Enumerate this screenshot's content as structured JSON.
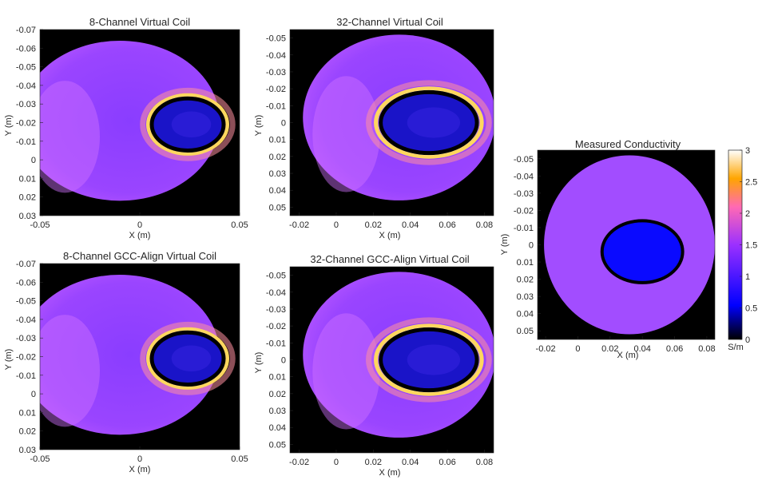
{
  "chart_data": [
    {
      "type": "heatmap",
      "title": "8-Channel Virtual Coil",
      "xlabel": "X (m)",
      "ylabel": "Y (m)",
      "xlim": [
        -0.05,
        0.05
      ],
      "ylim": [
        -0.07,
        0.03
      ],
      "y_reversed": true,
      "xticks": [
        -0.05,
        0,
        0.05
      ],
      "xtick_labels": [
        "-0.05",
        "0",
        "0.05"
      ],
      "yticks": [
        -0.07,
        -0.06,
        -0.05,
        -0.04,
        -0.03,
        -0.02,
        -0.01,
        0,
        0.01,
        0.02,
        0.03
      ],
      "ytick_labels": [
        "-0.07",
        "-0.06",
        "-0.05",
        "-0.04",
        "-0.03",
        "-0.02",
        "-0.01",
        "0",
        "0.01",
        "0.02",
        "0.03"
      ],
      "object_center": [
        -0.01,
        -0.021
      ],
      "object_radii": [
        0.05,
        0.043
      ],
      "inclusion_center": [
        0.024,
        -0.019
      ],
      "inclusion_radii": [
        0.018,
        0.014
      ],
      "background_level_s_per_m": 1.55,
      "rim_peak_s_per_m": 3.0
    },
    {
      "type": "heatmap",
      "title": "32-Channel Virtual Coil",
      "xlabel": "X (m)",
      "ylabel": "Y (m)",
      "xlim": [
        -0.025,
        0.085
      ],
      "ylim": [
        -0.055,
        0.055
      ],
      "y_reversed": true,
      "xticks": [
        -0.02,
        0,
        0.02,
        0.04,
        0.06,
        0.08
      ],
      "xtick_labels": [
        "-0.02",
        "0",
        "0.02",
        "0.04",
        "0.06",
        "0.08"
      ],
      "yticks": [
        -0.05,
        -0.04,
        -0.03,
        -0.02,
        -0.01,
        0,
        0.01,
        0.02,
        0.03,
        0.04,
        0.05
      ],
      "ytick_labels": [
        "-0.05",
        "-0.04",
        "-0.03",
        "-0.02",
        "-0.01",
        "0",
        "0.01",
        "0.02",
        "0.03",
        "0.04",
        "0.05"
      ],
      "object_center": [
        0.034,
        -0.003
      ],
      "object_radii": [
        0.052,
        0.049
      ],
      "inclusion_center": [
        0.05,
        0.0
      ],
      "inclusion_radii": [
        0.026,
        0.018
      ],
      "background_level_s_per_m": 1.55,
      "rim_peak_s_per_m": 3.0
    },
    {
      "type": "heatmap",
      "title": "8-Channel GCC-Align Virtual Coil",
      "xlabel": "X (m)",
      "ylabel": "Y (m)",
      "xlim": [
        -0.05,
        0.05
      ],
      "ylim": [
        -0.07,
        0.03
      ],
      "y_reversed": true,
      "xticks": [
        -0.05,
        0,
        0.05
      ],
      "xtick_labels": [
        "-0.05",
        "0",
        "0.05"
      ],
      "yticks": [
        -0.07,
        -0.06,
        -0.05,
        -0.04,
        -0.03,
        -0.02,
        -0.01,
        0,
        0.01,
        0.02,
        0.03
      ],
      "ytick_labels": [
        "-0.07",
        "-0.06",
        "-0.05",
        "-0.04",
        "-0.03",
        "-0.02",
        "-0.01",
        "0",
        "0.01",
        "0.02",
        "0.03"
      ],
      "object_center": [
        -0.01,
        -0.021
      ],
      "object_radii": [
        0.05,
        0.043
      ],
      "inclusion_center": [
        0.024,
        -0.019
      ],
      "inclusion_radii": [
        0.018,
        0.014
      ],
      "background_level_s_per_m": 1.55,
      "rim_peak_s_per_m": 3.0
    },
    {
      "type": "heatmap",
      "title": "32-Channel GCC-Align Virtual Coil",
      "xlabel": "X (m)",
      "ylabel": "Y (m)",
      "xlim": [
        -0.025,
        0.085
      ],
      "ylim": [
        -0.055,
        0.055
      ],
      "y_reversed": true,
      "xticks": [
        -0.02,
        0,
        0.02,
        0.04,
        0.06,
        0.08
      ],
      "xtick_labels": [
        "-0.02",
        "0",
        "0.02",
        "0.04",
        "0.06",
        "0.08"
      ],
      "yticks": [
        -0.05,
        -0.04,
        -0.03,
        -0.02,
        -0.01,
        0,
        0.01,
        0.02,
        0.03,
        0.04,
        0.05
      ],
      "ytick_labels": [
        "-0.05",
        "-0.04",
        "-0.03",
        "-0.02",
        "-0.01",
        "0",
        "0.01",
        "0.02",
        "0.03",
        "0.04",
        "0.05"
      ],
      "object_center": [
        0.034,
        -0.003
      ],
      "object_radii": [
        0.052,
        0.049
      ],
      "inclusion_center": [
        0.05,
        0.0
      ],
      "inclusion_radii": [
        0.026,
        0.018
      ],
      "background_level_s_per_m": 1.55,
      "rim_peak_s_per_m": 3.0
    },
    {
      "type": "heatmap",
      "title": "Measured Conductivity",
      "xlabel": "X (m)",
      "ylabel": "Y (m)",
      "xlim": [
        -0.025,
        0.085
      ],
      "ylim": [
        -0.055,
        0.055
      ],
      "y_reversed": true,
      "xticks": [
        -0.02,
        0,
        0.02,
        0.04,
        0.06,
        0.08
      ],
      "xtick_labels": [
        "-0.02",
        "0",
        "0.02",
        "0.04",
        "0.06",
        "0.08"
      ],
      "yticks": [
        -0.05,
        -0.04,
        -0.03,
        -0.02,
        -0.01,
        0,
        0.01,
        0.02,
        0.03,
        0.04,
        0.05
      ],
      "ytick_labels": [
        "-0.05",
        "-0.04",
        "-0.03",
        "-0.02",
        "-0.01",
        "0",
        "0.01",
        "0.02",
        "0.03",
        "0.04",
        "0.05"
      ],
      "object_center": [
        0.032,
        0.0
      ],
      "object_radii": [
        0.053,
        0.052
      ],
      "inclusion_center": [
        0.04,
        0.004
      ],
      "inclusion_radii": [
        0.025,
        0.018
      ],
      "background_value_s_per_m": 1.6,
      "inclusion_value_s_per_m": 0.9,
      "colorbar": {
        "range": [
          0,
          3
        ],
        "ticks": [
          0,
          0.5,
          1,
          1.5,
          2,
          2.5,
          3
        ],
        "tick_labels": [
          "0",
          "0.5",
          "1",
          "1.5",
          "2",
          "2.5",
          "3"
        ],
        "unit": "S/m",
        "colormap": [
          "#000000",
          "#0000ff",
          "#9b30ff",
          "#ff69b4",
          "#ffa500",
          "#ffffff"
        ]
      }
    }
  ]
}
